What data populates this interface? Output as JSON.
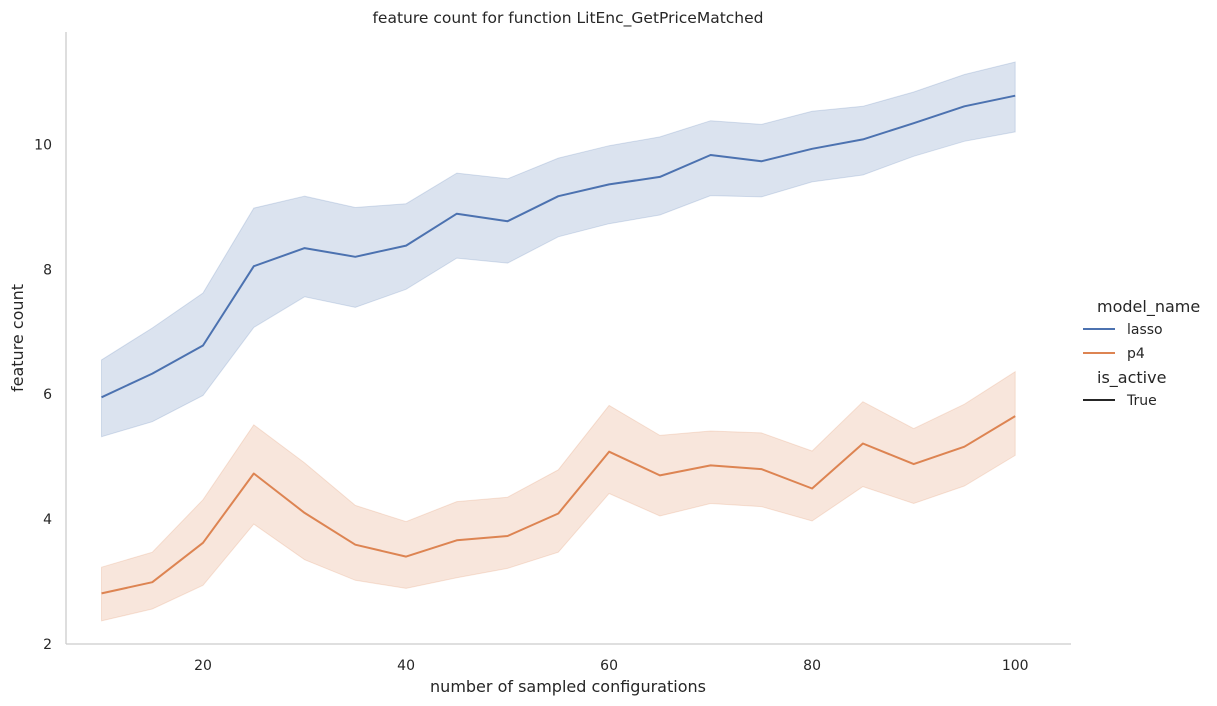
{
  "chart_data": {
    "type": "line",
    "title": "feature count for function LitEnc_GetPriceMatched",
    "xlabel": "number of sampled configurations",
    "ylabel": "feature count",
    "xlim": [
      6.5,
      105.5
    ],
    "ylim": [
      2,
      11.8
    ],
    "xticks": [
      20,
      40,
      60,
      80,
      100
    ],
    "yticks": [
      2,
      4,
      6,
      8,
      10
    ],
    "grid": false,
    "legend_position": "right",
    "x": [
      10,
      15,
      20,
      25,
      30,
      35,
      40,
      45,
      50,
      55,
      60,
      65,
      70,
      75,
      80,
      85,
      90,
      95,
      100
    ],
    "series": [
      {
        "name": "lasso",
        "color": "#4c72b0",
        "band_color": "#4c72b0",
        "values": [
          5.95,
          6.33,
          6.78,
          8.05,
          8.34,
          8.2,
          8.38,
          8.89,
          8.77,
          9.17,
          9.36,
          9.48,
          9.83,
          9.73,
          9.93,
          10.08,
          10.34,
          10.61,
          10.78
        ],
        "ci_upper": [
          6.55,
          7.06,
          7.62,
          8.98,
          9.17,
          8.99,
          9.05,
          9.54,
          9.45,
          9.78,
          9.98,
          10.12,
          10.38,
          10.32,
          10.53,
          10.61,
          10.84,
          11.12,
          11.32
        ],
        "ci_lower": [
          5.32,
          5.56,
          5.98,
          7.07,
          7.56,
          7.39,
          7.68,
          8.18,
          8.1,
          8.52,
          8.73,
          8.87,
          9.18,
          9.16,
          9.4,
          9.51,
          9.81,
          10.05,
          10.2
        ]
      },
      {
        "name": "p4",
        "color": "#dd8452",
        "band_color": "#dd8452",
        "values": [
          2.81,
          2.99,
          3.62,
          4.73,
          4.1,
          3.59,
          3.4,
          3.66,
          3.73,
          4.09,
          5.08,
          4.7,
          4.86,
          4.8,
          4.49,
          5.21,
          4.88,
          5.16,
          5.65
        ],
        "ci_upper": [
          3.23,
          3.47,
          4.31,
          5.51,
          4.9,
          4.22,
          3.96,
          4.28,
          4.35,
          4.79,
          5.82,
          5.34,
          5.41,
          5.38,
          5.09,
          5.88,
          5.45,
          5.84,
          6.36
        ],
        "ci_lower": [
          2.37,
          2.56,
          2.94,
          3.92,
          3.35,
          3.02,
          2.89,
          3.06,
          3.21,
          3.47,
          4.41,
          4.05,
          4.25,
          4.2,
          3.97,
          4.52,
          4.25,
          4.53,
          5.02
        ]
      }
    ],
    "legend": {
      "hue_title": "model_name",
      "hue_entries": [
        "lasso",
        "p4"
      ],
      "style_title": "is_active",
      "style_entries": [
        "True"
      ],
      "style_color": "#262626"
    }
  }
}
